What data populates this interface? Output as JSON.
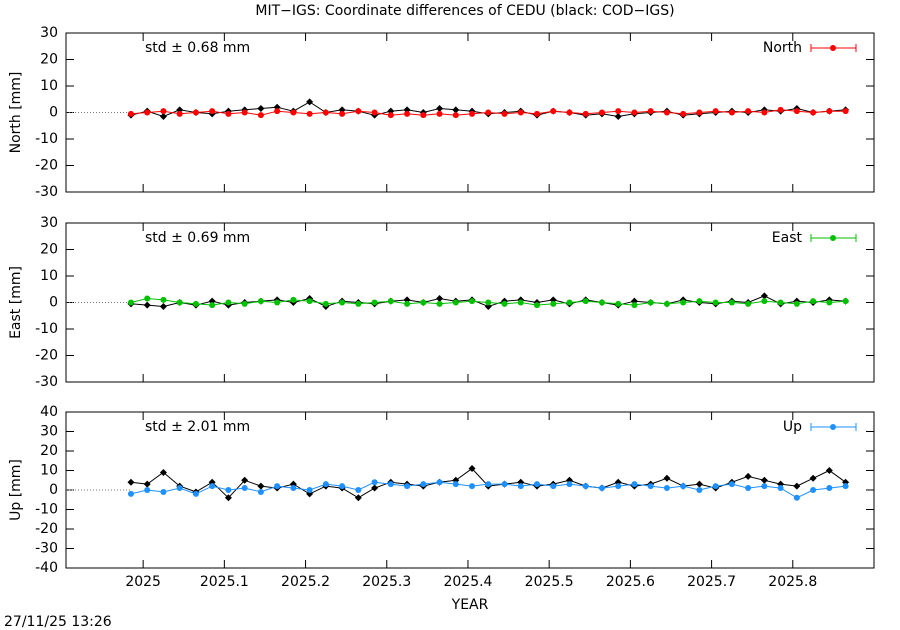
{
  "title": "MIT−IGS: Coordinate differences of CEDU (black: COD−IGS)",
  "timestamp": "27/11/25 13:26",
  "chart_data": [
    {
      "type": "line",
      "ylabel": "North [mm]",
      "annotation": "std ± 0.68 mm",
      "annotation_color": "#ff0000",
      "legend": "upper right",
      "xlim": [
        2024.905,
        2025.9
      ],
      "xticks": [
        2025,
        2025.1,
        2025.2,
        2025.3,
        2025.4,
        2025.5,
        2025.6,
        2025.7,
        2025.8
      ],
      "ylim": [
        -30,
        30
      ],
      "yticks": [
        -30,
        -20,
        -10,
        0,
        10,
        20,
        30
      ],
      "x": [
        2024.985,
        2025.005,
        2025.025,
        2025.045,
        2025.065,
        2025.085,
        2025.105,
        2025.125,
        2025.145,
        2025.165,
        2025.185,
        2025.205,
        2025.225,
        2025.245,
        2025.265,
        2025.285,
        2025.305,
        2025.325,
        2025.345,
        2025.365,
        2025.385,
        2025.405,
        2025.425,
        2025.445,
        2025.465,
        2025.485,
        2025.505,
        2025.525,
        2025.545,
        2025.565,
        2025.585,
        2025.605,
        2025.625,
        2025.645,
        2025.665,
        2025.685,
        2025.705,
        2025.725,
        2025.745,
        2025.765,
        2025.785,
        2025.805,
        2025.825,
        2025.845,
        2025.865
      ],
      "series": [
        {
          "color": "#000000",
          "values": [
            -1,
            0.5,
            -1.5,
            1,
            0,
            -0.5,
            0.5,
            1,
            1.5,
            2,
            0.5,
            4,
            0,
            1,
            0.5,
            -1,
            0.5,
            1,
            0,
            1.5,
            1,
            0.5,
            -0.5,
            0,
            0.5,
            -1,
            0.5,
            0,
            -1,
            -0.5,
            -1.5,
            -0.5,
            0,
            0.5,
            -1,
            -0.5,
            0,
            0.5,
            0,
            1,
            0.5,
            1.5,
            0,
            0.5,
            1
          ]
        },
        {
          "name": "North",
          "color": "#ff0000",
          "values": [
            -0.5,
            0,
            0.5,
            -0.5,
            0,
            0.5,
            -0.5,
            0,
            -1,
            0.5,
            0,
            -0.5,
            0,
            -0.5,
            0.5,
            0,
            -1,
            -0.5,
            -1,
            -0.5,
            -1,
            -0.5,
            0,
            -0.5,
            0,
            -0.5,
            0.5,
            0,
            -0.5,
            0,
            0.5,
            0,
            0.5,
            0,
            -0.5,
            0,
            0.5,
            0,
            0.5,
            0,
            1,
            0.5,
            0,
            0.5,
            0.5
          ]
        }
      ]
    },
    {
      "type": "line",
      "ylabel": "East [mm]",
      "annotation": "std ± 0.69 mm",
      "annotation_color": "#00c000",
      "legend": "upper right",
      "xlim": [
        2024.905,
        2025.9
      ],
      "xticks": [
        2025,
        2025.1,
        2025.2,
        2025.3,
        2025.4,
        2025.5,
        2025.6,
        2025.7,
        2025.8
      ],
      "ylim": [
        -30,
        30
      ],
      "yticks": [
        -30,
        -20,
        -10,
        0,
        10,
        20,
        30
      ],
      "x": [
        2024.985,
        2025.005,
        2025.025,
        2025.045,
        2025.065,
        2025.085,
        2025.105,
        2025.125,
        2025.145,
        2025.165,
        2025.185,
        2025.205,
        2025.225,
        2025.245,
        2025.265,
        2025.285,
        2025.305,
        2025.325,
        2025.345,
        2025.365,
        2025.385,
        2025.405,
        2025.425,
        2025.445,
        2025.465,
        2025.485,
        2025.505,
        2025.525,
        2025.545,
        2025.565,
        2025.585,
        2025.605,
        2025.625,
        2025.645,
        2025.665,
        2025.685,
        2025.705,
        2025.725,
        2025.745,
        2025.765,
        2025.785,
        2025.805,
        2025.825,
        2025.845,
        2025.865
      ],
      "series": [
        {
          "color": "#000000",
          "values": [
            -0.5,
            -1,
            -1.5,
            0,
            -1,
            0.5,
            -1,
            0,
            0.5,
            1,
            0,
            1.5,
            -1.5,
            0.5,
            0,
            -0.5,
            0.5,
            1,
            0,
            1.5,
            0.5,
            1,
            -1.5,
            0.5,
            1,
            0,
            1,
            -0.5,
            1,
            0,
            -1,
            0.5,
            0,
            -0.5,
            1,
            0,
            -0.5,
            0.5,
            0,
            2.5,
            -0.5,
            0.5,
            0,
            1,
            0.5
          ]
        },
        {
          "name": "East",
          "color": "#00c000",
          "values": [
            0,
            1.5,
            1,
            0,
            -0.5,
            -1,
            0,
            -0.5,
            0.5,
            0,
            1,
            0.5,
            -0.5,
            0,
            -0.5,
            0,
            0.5,
            -0.5,
            0,
            -0.5,
            0,
            0.5,
            0,
            -0.5,
            0,
            -1,
            -0.5,
            0,
            0.5,
            0,
            -0.5,
            -1,
            0,
            -0.5,
            0,
            0.5,
            0,
            0,
            -0.5,
            0.5,
            0,
            -0.5,
            0.5,
            0,
            0.5
          ]
        }
      ]
    },
    {
      "type": "line",
      "ylabel": "Up [mm]",
      "xlabel": "YEAR",
      "annotation": "std ± 2.01 mm",
      "annotation_color": "#1e90ff",
      "legend": "upper right",
      "xlim": [
        2024.905,
        2025.9
      ],
      "xticks": [
        2025,
        2025.1,
        2025.2,
        2025.3,
        2025.4,
        2025.5,
        2025.6,
        2025.7,
        2025.8
      ],
      "ylim": [
        -40,
        40
      ],
      "yticks": [
        -40,
        -30,
        -20,
        -10,
        0,
        10,
        20,
        30,
        40
      ],
      "x": [
        2024.985,
        2025.005,
        2025.025,
        2025.045,
        2025.065,
        2025.085,
        2025.105,
        2025.125,
        2025.145,
        2025.165,
        2025.185,
        2025.205,
        2025.225,
        2025.245,
        2025.265,
        2025.285,
        2025.305,
        2025.325,
        2025.345,
        2025.365,
        2025.385,
        2025.405,
        2025.425,
        2025.445,
        2025.465,
        2025.485,
        2025.505,
        2025.525,
        2025.545,
        2025.565,
        2025.585,
        2025.605,
        2025.625,
        2025.645,
        2025.665,
        2025.685,
        2025.705,
        2025.725,
        2025.745,
        2025.765,
        2025.785,
        2025.805,
        2025.825,
        2025.845,
        2025.865
      ],
      "series": [
        {
          "color": "#000000",
          "values": [
            4,
            3,
            9,
            2,
            -1,
            4,
            -4,
            5,
            2,
            1,
            3,
            -2,
            2,
            1,
            -4,
            1,
            4,
            3,
            2,
            4,
            5,
            11,
            2,
            3,
            4,
            2,
            3,
            5,
            2,
            1,
            4,
            2,
            3,
            6,
            2,
            3,
            1,
            4,
            7,
            5,
            3,
            2,
            6,
            10,
            4
          ]
        },
        {
          "name": "Up",
          "color": "#1e90ff",
          "values": [
            -2,
            0,
            -1,
            1,
            -2,
            2,
            0,
            1,
            -1,
            2,
            1,
            0,
            3,
            2,
            0,
            4,
            3,
            2,
            3,
            4,
            3,
            2,
            3,
            3,
            2,
            3,
            2,
            3,
            2,
            1,
            2,
            3,
            2,
            1,
            2,
            0,
            2,
            3,
            1,
            2,
            1,
            -4,
            0,
            1,
            2
          ]
        }
      ]
    }
  ]
}
